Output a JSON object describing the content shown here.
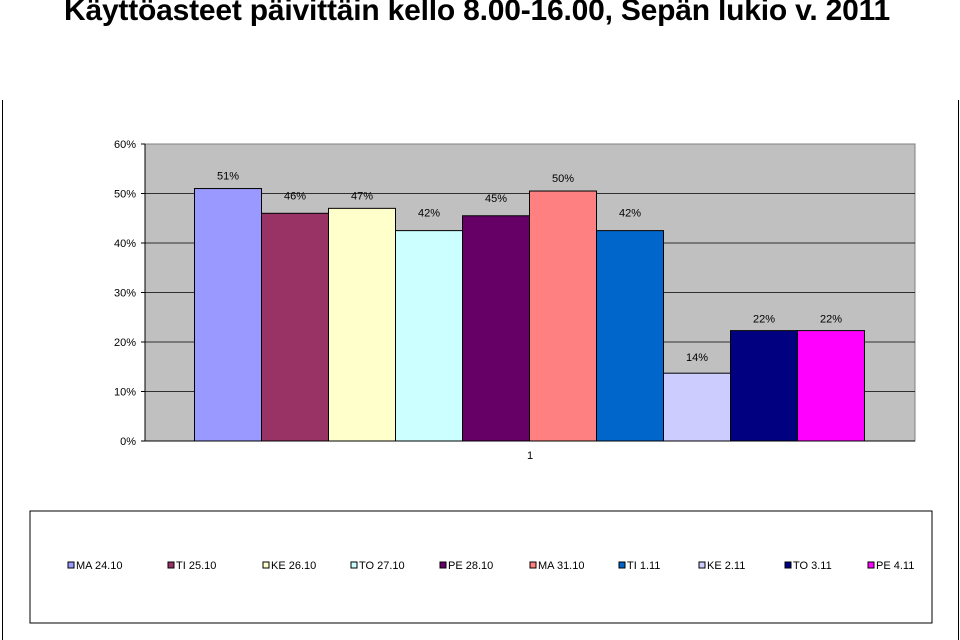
{
  "slide": {
    "title": "Käyttöasteet päivittäin kello 8.00-16.00, Sepän lukio v. 2011"
  },
  "chart_data": {
    "type": "bar",
    "categories": [
      "1"
    ],
    "ylim": [
      0,
      60
    ],
    "yticks": [
      "0%",
      "10%",
      "20%",
      "30%",
      "40%",
      "50%",
      "60%"
    ],
    "ytick_values": [
      0,
      10,
      20,
      30,
      40,
      50,
      60
    ],
    "grid": true,
    "plot_background": "#c0c0c0",
    "legend_position": "bottom",
    "series": [
      {
        "name": "MA 24.10",
        "value": 51,
        "label": "51%",
        "color": "#9999ff"
      },
      {
        "name": "TI 25.10",
        "value": 46,
        "label": "46%",
        "color": "#993366"
      },
      {
        "name": "KE 26.10",
        "value": 47,
        "label": "47%",
        "color": "#ffffcc"
      },
      {
        "name": "TO 27.10",
        "value": 42.5,
        "label": "42%",
        "color": "#ccffff"
      },
      {
        "name": "PE 28.10",
        "value": 45.5,
        "label": "45%",
        "color": "#660066"
      },
      {
        "name": "MA 31.10",
        "value": 50.5,
        "label": "50%",
        "color": "#ff8080"
      },
      {
        "name": "TI 1.11",
        "value": 42.5,
        "label": "42%",
        "color": "#0066cc"
      },
      {
        "name": "KE 2.11",
        "value": 13.7,
        "label": "14%",
        "color": "#ccccff"
      },
      {
        "name": "TO 3.11",
        "value": 22.3,
        "label": "22%",
        "color": "#000080"
      },
      {
        "name": "PE 4.11",
        "value": 22.3,
        "label": "22%",
        "color": "#ff00ff"
      }
    ]
  }
}
